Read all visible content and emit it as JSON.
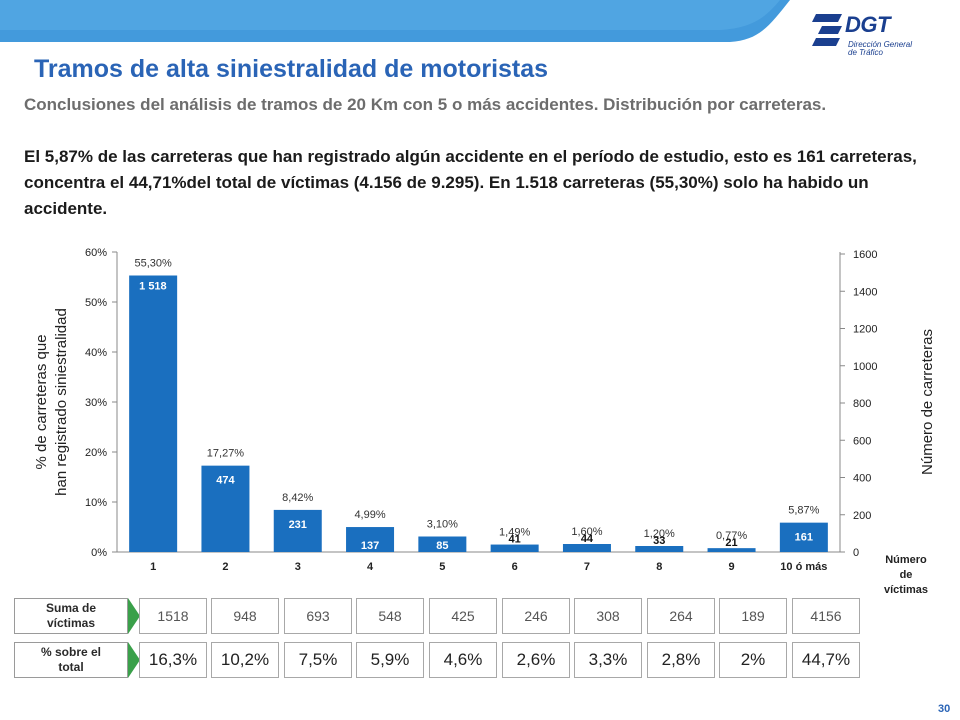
{
  "header": {
    "logo_text": "DGT",
    "logo_sub_1": "Dirección General",
    "logo_sub_2": "de Tráfico",
    "title": "Tramos de alta siniestralidad de motoristas",
    "subtitle": "Conclusiones del análisis de tramos de 20 Km con 5 o más accidentes. Distribución por carreteras.",
    "conclusion": "El 5,87% de las carreteras que han registrado algún accidente en el período de estudio, esto es 161 carreteras, concentra el 44,71%del total de víctimas (4.156 de 9.295). En 1.518 carreteras (55,30%) solo ha habido un accidente."
  },
  "colors": {
    "bar": "#1a6fbf",
    "title": "#2a64b6",
    "arrow": "#3aa04a"
  },
  "chart_data": {
    "type": "bar",
    "categories": [
      "1",
      "2",
      "3",
      "4",
      "5",
      "6",
      "7",
      "8",
      "9",
      "10 ó más"
    ],
    "values_pct": [
      55.3,
      17.27,
      8.42,
      4.99,
      3.1,
      1.49,
      1.6,
      1.2,
      0.77,
      5.87
    ],
    "values_count": [
      1518,
      474,
      231,
      137,
      85,
      41,
      44,
      33,
      21,
      161
    ],
    "pct_labels": [
      "55,30%",
      "17,27%",
      "8,42%",
      "4,99%",
      "3,10%",
      "1,49%",
      "1,60%",
      "1,20%",
      "0,77%",
      "5,87%"
    ],
    "count_labels": [
      "1 518",
      "474",
      "231",
      "137",
      "85",
      "41",
      "44",
      "33",
      "21",
      "161"
    ],
    "y_left_ticks": [
      "0%",
      "10%",
      "20%",
      "30%",
      "40%",
      "50%",
      "60%"
    ],
    "y_left_lim": [
      0,
      60
    ],
    "y_right_ticks": [
      "0",
      "200",
      "400",
      "600",
      "800",
      "1000",
      "1200",
      "1400",
      "1600"
    ],
    "y_right_lim": [
      0,
      1600
    ],
    "ylabel_left_1": "% de carreteras que",
    "ylabel_left_2": "han registrado siniestralidad",
    "ylabel_right": "Número de carreteras",
    "xlabel_1": "Número",
    "xlabel_2": "de",
    "xlabel_3": "víctimas",
    "grid": false
  },
  "table": {
    "sum_label_1": "Suma de",
    "sum_label_2": "víctimas",
    "pct_label_1": "% sobre el",
    "pct_label_2": "total",
    "sums": [
      "1518",
      "948",
      "693",
      "548",
      "425",
      "246",
      "308",
      "264",
      "189",
      "4156"
    ],
    "pcts": [
      "16,3%",
      "10,2%",
      "7,5%",
      "5,9%",
      "4,6%",
      "2,6%",
      "3,3%",
      "2,8%",
      "2%",
      "44,7%"
    ]
  },
  "page_number": "30"
}
